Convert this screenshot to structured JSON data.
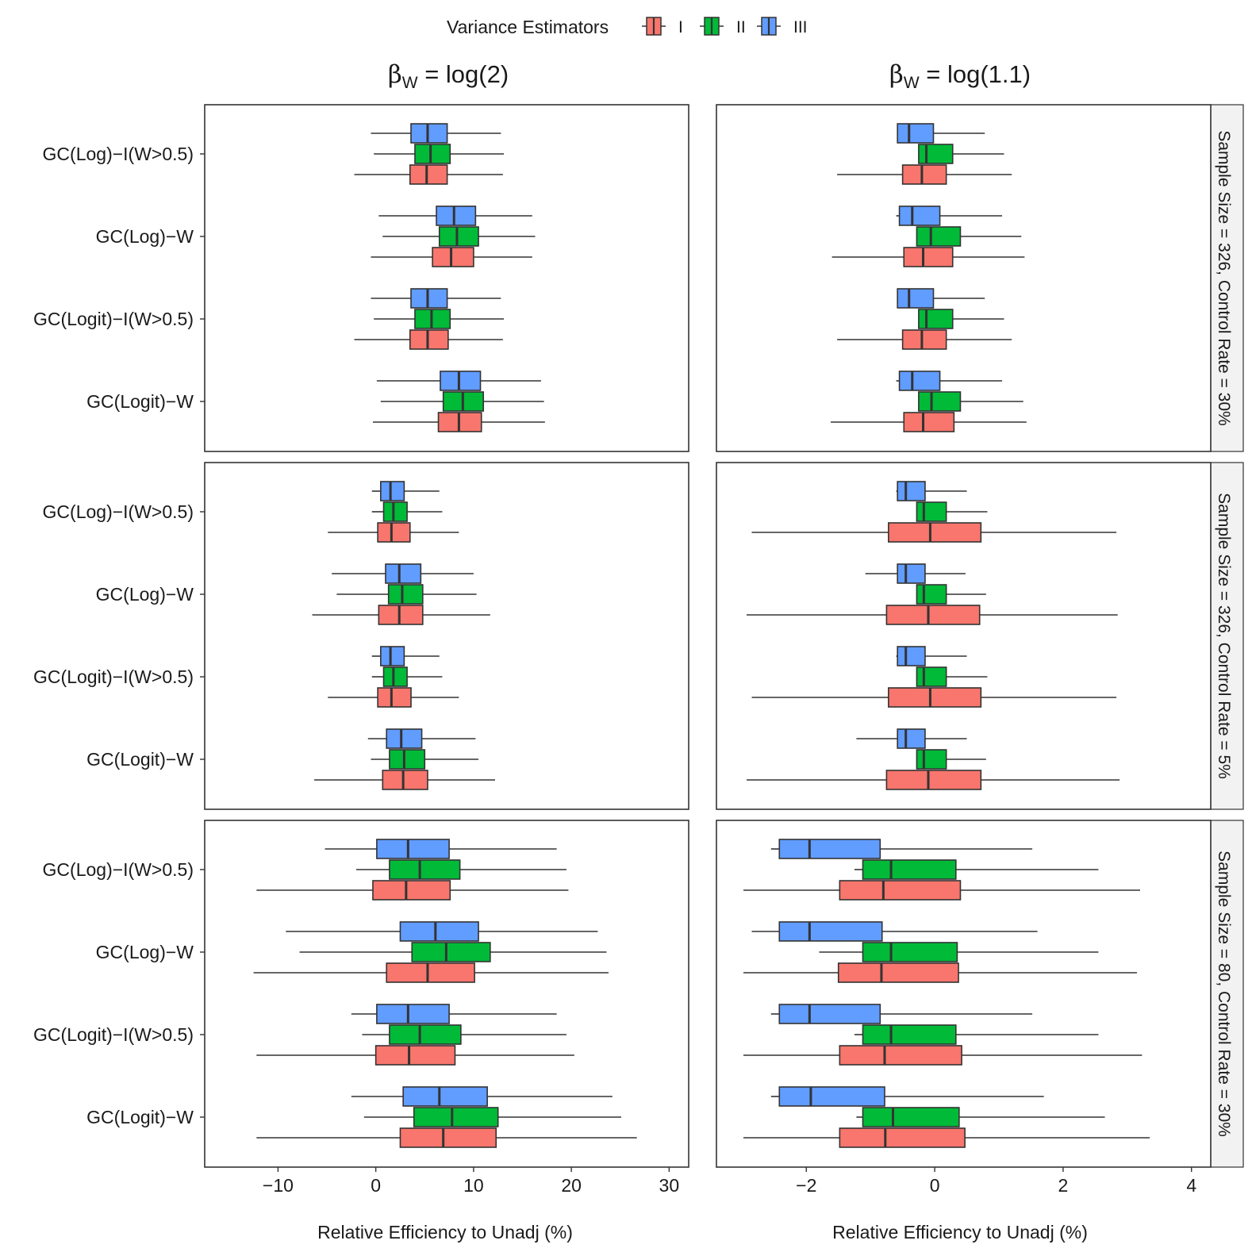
{
  "legend": {
    "title": "Variance Estimators",
    "items": [
      {
        "label": "I",
        "color": "#F8766D"
      },
      {
        "label": "II",
        "color": "#00BA38"
      },
      {
        "label": "III",
        "color": "#619CFF"
      }
    ]
  },
  "columns": [
    {
      "beta": "β",
      "sub": "W",
      "eq": " = log(2)"
    },
    {
      "beta": "β",
      "sub": "W",
      "eq": " = log(1.1)"
    }
  ],
  "rows": [
    {
      "strip": "Sample Size = 326, Control Rate = 30%"
    },
    {
      "strip": "Sample Size = 326, Control Rate = 5%"
    },
    {
      "strip": "Sample Size = 80, Control Rate = 30%"
    }
  ],
  "xlabel": "Relative Efficiency to Unadj (%)",
  "chart_data": {
    "type": "boxplot",
    "orientation": "horizontal",
    "box_stats_order": [
      "whisker_low",
      "q1",
      "median",
      "q3",
      "whisker_high"
    ],
    "categories": [
      "GC(Log)−I(W>0.5)",
      "GC(Log)−W",
      "GC(Logit)−I(W>0.5)",
      "GC(Logit)−W"
    ],
    "series": [
      "I",
      "II",
      "III"
    ],
    "panels": [
      {
        "row": 0,
        "col": 0,
        "xlim": [
          -17.5,
          32
        ],
        "xticks": [
          -10,
          0,
          10,
          20,
          30
        ],
        "data": [
          {
            "I": [
              -2.2,
              3.5,
              5.2,
              7.3,
              13
            ],
            "II": [
              -0.2,
              4,
              5.6,
              7.6,
              13.1
            ],
            "III": [
              -0.5,
              3.6,
              5.3,
              7.3,
              12.8
            ]
          },
          {
            "I": [
              -0.5,
              5.8,
              7.7,
              10,
              16
            ],
            "II": [
              0.7,
              6.5,
              8.3,
              10.5,
              16.3
            ],
            "III": [
              0.3,
              6.2,
              8,
              10.2,
              16
            ]
          },
          {
            "I": [
              -2.2,
              3.5,
              5.3,
              7.4,
              13
            ],
            "II": [
              -0.2,
              4,
              5.7,
              7.6,
              13.1
            ],
            "III": [
              -0.5,
              3.6,
              5.3,
              7.3,
              12.8
            ]
          },
          {
            "I": [
              -0.3,
              6.4,
              8.5,
              10.8,
              17.3
            ],
            "II": [
              0.5,
              6.9,
              8.9,
              11,
              17.2
            ],
            "III": [
              0.1,
              6.6,
              8.5,
              10.7,
              16.9
            ]
          }
        ]
      },
      {
        "row": 0,
        "col": 1,
        "xlim": [
          -3.4,
          4.3
        ],
        "xticks": [
          -2,
          0,
          2,
          4
        ],
        "data": [
          {
            "I": [
              -1.52,
              -0.5,
              -0.2,
              0.18,
              1.2
            ],
            "II": [
              -0.25,
              -0.25,
              -0.13,
              0.28,
              1.08
            ],
            "III": [
              -0.58,
              -0.58,
              -0.4,
              -0.02,
              0.78
            ]
          },
          {
            "I": [
              -1.6,
              -0.48,
              -0.18,
              0.28,
              1.4
            ],
            "II": [
              -0.28,
              -0.28,
              -0.06,
              0.4,
              1.35
            ],
            "III": [
              -0.6,
              -0.55,
              -0.35,
              0.08,
              1.05
            ]
          },
          {
            "I": [
              -1.52,
              -0.5,
              -0.2,
              0.18,
              1.2
            ],
            "II": [
              -0.25,
              -0.25,
              -0.13,
              0.28,
              1.08
            ],
            "III": [
              -0.58,
              -0.58,
              -0.4,
              -0.02,
              0.78
            ]
          },
          {
            "I": [
              -1.62,
              -0.48,
              -0.18,
              0.3,
              1.43
            ],
            "II": [
              -0.25,
              -0.25,
              -0.05,
              0.4,
              1.38
            ],
            "III": [
              -0.6,
              -0.55,
              -0.35,
              0.08,
              1.05
            ]
          }
        ]
      },
      {
        "row": 1,
        "col": 0,
        "xlim": [
          -17.5,
          32
        ],
        "xticks": [
          -10,
          0,
          10,
          20,
          30
        ],
        "data": [
          {
            "I": [
              -4.9,
              0.2,
              1.6,
              3.5,
              8.5
            ],
            "II": [
              -0.4,
              0.8,
              1.8,
              3.2,
              6.8
            ],
            "III": [
              -0.4,
              0.5,
              1.5,
              2.9,
              6.5
            ]
          },
          {
            "I": [
              -6.5,
              0.3,
              2.4,
              4.8,
              11.7
            ],
            "II": [
              -4,
              1.3,
              2.7,
              4.8,
              10.3
            ],
            "III": [
              -4.5,
              1,
              2.4,
              4.6,
              10
            ]
          },
          {
            "I": [
              -4.9,
              0.2,
              1.6,
              3.6,
              8.5
            ],
            "II": [
              -0.4,
              0.8,
              1.8,
              3.2,
              6.8
            ],
            "III": [
              -0.4,
              0.5,
              1.5,
              2.9,
              6.5
            ]
          },
          {
            "I": [
              -6.3,
              0.7,
              2.8,
              5.3,
              12.2
            ],
            "II": [
              -0.5,
              1.4,
              2.9,
              5,
              10.5
            ],
            "III": [
              -0.8,
              1.1,
              2.6,
              4.7,
              10.2
            ]
          }
        ]
      },
      {
        "row": 1,
        "col": 1,
        "xlim": [
          -3.4,
          4.3
        ],
        "xticks": [
          -2,
          0,
          2,
          4
        ],
        "data": [
          {
            "I": [
              -2.85,
              -0.72,
              -0.07,
              0.72,
              2.83
            ],
            "II": [
              -0.28,
              -0.28,
              -0.17,
              0.18,
              0.82
            ],
            "III": [
              -0.6,
              -0.58,
              -0.45,
              -0.15,
              0.5
            ]
          },
          {
            "I": [
              -2.93,
              -0.75,
              -0.1,
              0.7,
              2.85
            ],
            "II": [
              -0.28,
              -0.28,
              -0.17,
              0.18,
              0.8
            ],
            "III": [
              -1.08,
              -0.58,
              -0.45,
              -0.15,
              0.48
            ]
          },
          {
            "I": [
              -2.85,
              -0.72,
              -0.07,
              0.72,
              2.83
            ],
            "II": [
              -0.28,
              -0.28,
              -0.17,
              0.18,
              0.82
            ],
            "III": [
              -0.6,
              -0.58,
              -0.45,
              -0.15,
              0.5
            ]
          },
          {
            "I": [
              -2.93,
              -0.75,
              -0.1,
              0.72,
              2.88
            ],
            "II": [
              -0.28,
              -0.28,
              -0.17,
              0.18,
              0.8
            ],
            "III": [
              -1.22,
              -0.58,
              -0.45,
              -0.15,
              0.5
            ]
          }
        ]
      },
      {
        "row": 2,
        "col": 0,
        "xlim": [
          -17.5,
          32
        ],
        "xticks": [
          -10,
          0,
          10,
          20,
          30
        ],
        "data": [
          {
            "I": [
              -12.2,
              -0.3,
              3.1,
              7.6,
              19.7
            ],
            "II": [
              -2,
              1.4,
              4.5,
              8.6,
              19.5
            ],
            "III": [
              -5.2,
              0.1,
              3.3,
              7.5,
              18.5
            ]
          },
          {
            "I": [
              -12.5,
              1.1,
              5.3,
              10.1,
              23.8
            ],
            "II": [
              -7.8,
              3.7,
              7.2,
              11.7,
              23.6
            ],
            "III": [
              -9.2,
              2.5,
              6.1,
              10.5,
              22.7
            ]
          },
          {
            "I": [
              -12.2,
              0,
              3.4,
              8.1,
              20.3
            ],
            "II": [
              -1.4,
              1.4,
              4.5,
              8.7,
              19.5
            ],
            "III": [
              -2.5,
              0.1,
              3.3,
              7.5,
              18.5
            ]
          },
          {
            "I": [
              -12.2,
              2.5,
              6.9,
              12.3,
              26.7
            ],
            "II": [
              -1.2,
              3.9,
              7.8,
              12.5,
              25.1
            ],
            "III": [
              -2.5,
              2.8,
              6.5,
              11.4,
              24.2
            ]
          }
        ]
      },
      {
        "row": 2,
        "col": 1,
        "xlim": [
          -3.4,
          4.3
        ],
        "xticks": [
          -2,
          0,
          2,
          4
        ],
        "data": [
          {
            "I": [
              -2.98,
              -1.48,
              -0.8,
              0.4,
              3.2
            ],
            "II": [
              -1.25,
              -1.12,
              -0.68,
              0.33,
              2.55
            ],
            "III": [
              -2.55,
              -2.42,
              -1.95,
              -0.85,
              1.52
            ]
          },
          {
            "I": [
              -2.98,
              -1.5,
              -0.83,
              0.37,
              3.15
            ],
            "II": [
              -1.8,
              -1.12,
              -0.68,
              0.35,
              2.55
            ],
            "III": [
              -2.85,
              -2.42,
              -1.95,
              -0.82,
              1.6
            ]
          },
          {
            "I": [
              -2.98,
              -1.48,
              -0.78,
              0.42,
              3.23
            ],
            "II": [
              -1.25,
              -1.12,
              -0.68,
              0.33,
              2.55
            ],
            "III": [
              -2.55,
              -2.42,
              -1.95,
              -0.85,
              1.52
            ]
          },
          {
            "I": [
              -2.98,
              -1.48,
              -0.77,
              0.47,
              3.35
            ],
            "II": [
              -1.22,
              -1.12,
              -0.65,
              0.38,
              2.65
            ],
            "III": [
              -2.55,
              -2.42,
              -1.93,
              -0.78,
              1.7
            ]
          }
        ]
      }
    ]
  }
}
